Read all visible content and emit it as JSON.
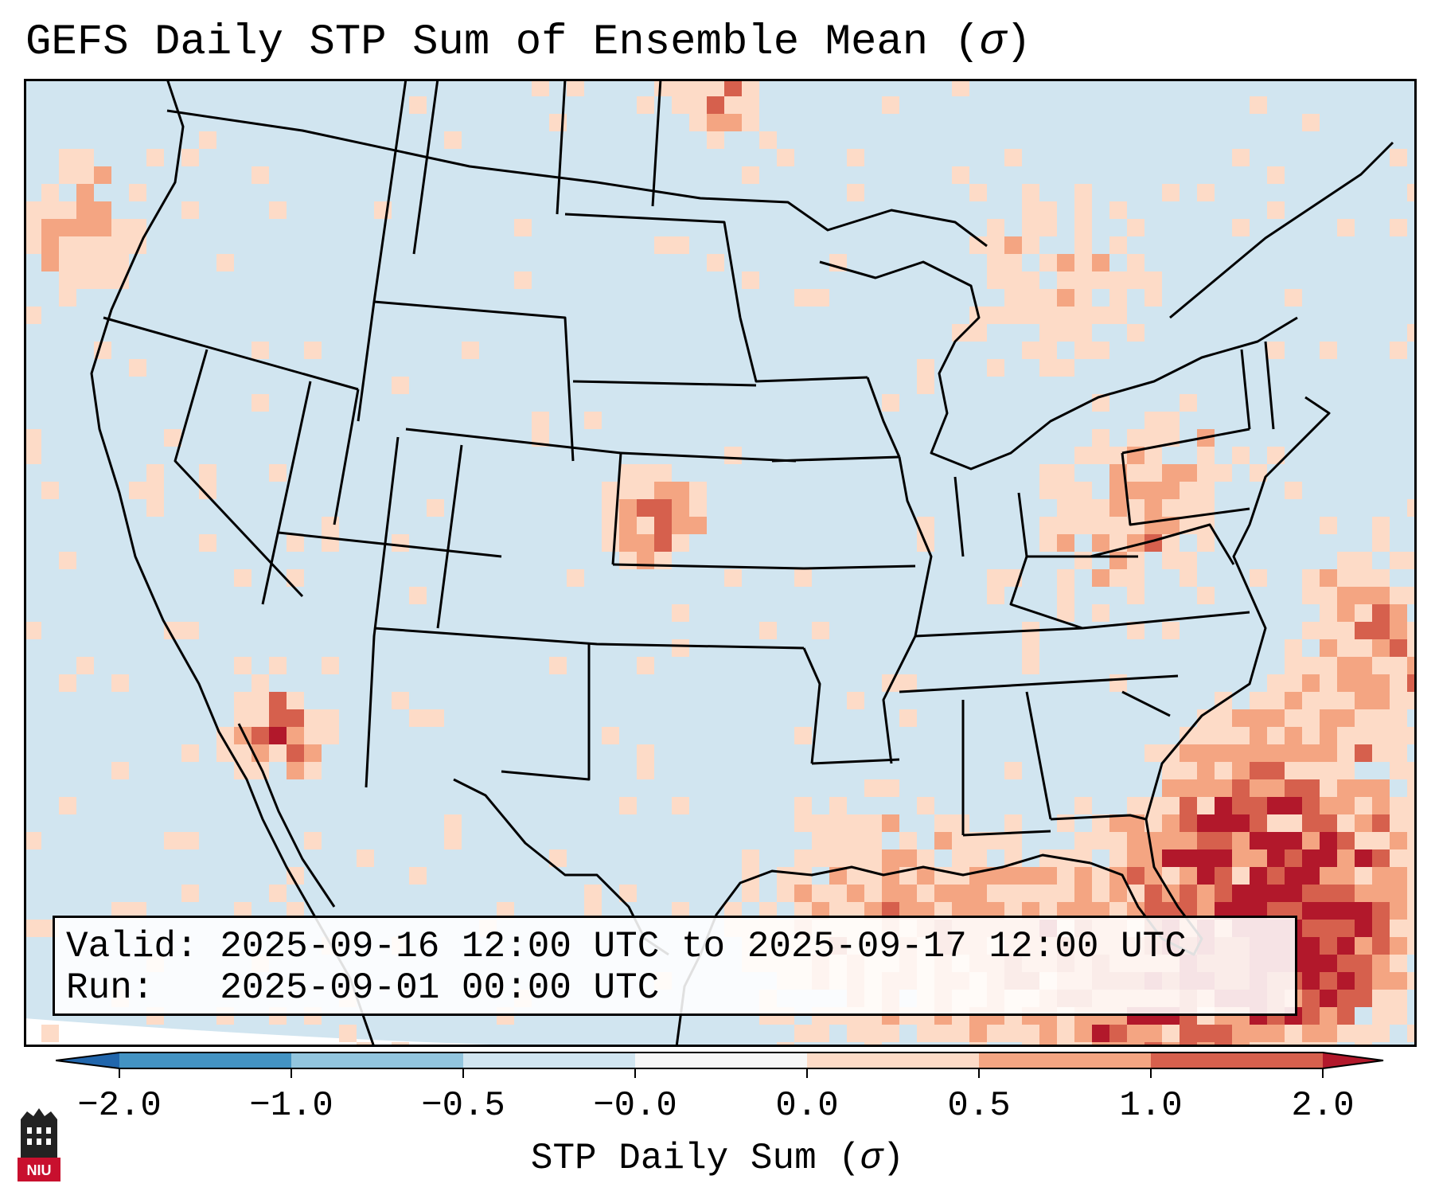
{
  "title_prefix": "GEFS Daily STP Sum of Ensemble Mean (",
  "title_sigma": "σ",
  "title_suffix": ")",
  "valid_label": "Valid:",
  "valid_value": "2025-09-16 12:00 UTC to 2025-09-17 12:00 UTC",
  "run_label": "Run:",
  "run_value": "2025-09-01 00:00 UTC",
  "colorbar": {
    "title_prefix": "STP Daily Sum (",
    "title_sigma": "σ",
    "title_suffix": ")",
    "ticks": [
      "−2.0",
      "−1.0",
      "−0.5",
      "−0.0",
      "0.0",
      "0.5",
      "1.0",
      "2.0"
    ],
    "colors": [
      "#2166ac",
      "#4393c3",
      "#92c5de",
      "#d1e5f0",
      "#f7f7f7",
      "#fddbc7",
      "#f4a582",
      "#d6604d",
      "#b2182b"
    ]
  },
  "map": {
    "background": "#d1e5f0",
    "region": "Continental United States"
  },
  "logo": {
    "text": "NIU",
    "color": "#c8102e"
  }
}
